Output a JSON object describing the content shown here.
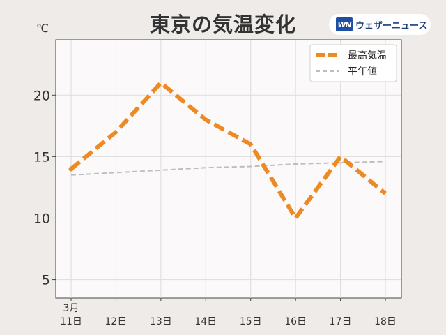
{
  "title": "東京の気温変化",
  "brand": {
    "mark": "WN",
    "name": "ウェザーニュース"
  },
  "colors": {
    "max_temp": "#ee8a24",
    "normal": "#bdbdbd",
    "background": "#efebe9",
    "plot_bg": "#fbf9fa"
  },
  "chart_data": {
    "type": "line",
    "ylabel": "℃",
    "month_label": "3月",
    "categories": [
      "11日",
      "12日",
      "13日",
      "14日",
      "15日",
      "16日",
      "17日",
      "18日"
    ],
    "ylim": [
      3.5,
      24.5
    ],
    "yticks": [
      5,
      10,
      15,
      20
    ],
    "grid": true,
    "legend_position": "top-right",
    "series": [
      {
        "name": "最高気温",
        "values": [
          14,
          17,
          21,
          18,
          16,
          10,
          15,
          12
        ],
        "style": "dashed-thick",
        "color": "#ee8a24"
      },
      {
        "name": "平年値",
        "values": [
          13.5,
          13.7,
          13.9,
          14.1,
          14.2,
          14.4,
          14.5,
          14.6
        ],
        "style": "dashed-thin",
        "color": "#bdbdbd"
      }
    ]
  }
}
